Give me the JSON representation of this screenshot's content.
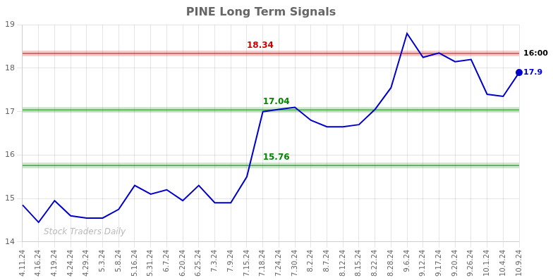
{
  "chart_data": {
    "type": "line",
    "title": "PINE Long Term Signals",
    "categories": [
      "4.11.24",
      "4.16.24",
      "4.19.24",
      "4.24.24",
      "4.29.24",
      "5.3.24",
      "5.8.24",
      "5.16.24",
      "5.31.24",
      "6.7.24",
      "6.20.24",
      "6.25.24",
      "7.3.24",
      "7.9.24",
      "7.15.24",
      "7.18.24",
      "7.24.24",
      "7.30.24",
      "8.2.24",
      "8.7.24",
      "8.12.24",
      "8.15.24",
      "8.22.24",
      "8.28.24",
      "9.6.24",
      "9.12.24",
      "9.17.24",
      "9.20.24",
      "9.26.24",
      "10.1.24",
      "10.4.24",
      "10.9.24"
    ],
    "values": [
      14.85,
      14.45,
      14.95,
      14.6,
      14.55,
      14.55,
      14.75,
      15.3,
      15.1,
      15.2,
      14.95,
      15.3,
      14.9,
      14.9,
      15.5,
      17.0,
      17.05,
      17.1,
      16.8,
      16.65,
      16.65,
      16.7,
      17.05,
      17.55,
      18.8,
      18.25,
      18.35,
      18.15,
      18.2,
      17.4,
      17.35,
      17.9
    ],
    "color": "#0000cc",
    "ylim": [
      14,
      19
    ],
    "yticks": [
      14,
      15,
      16,
      17,
      18,
      19
    ],
    "grid": true,
    "annotations": [
      {
        "type": "hline",
        "y": 18.34,
        "text": "18.34",
        "color": "#cc0000",
        "x": "7.15.24"
      },
      {
        "type": "hline",
        "y": 17.04,
        "text": "17.04",
        "color": "#008800",
        "x": "7.18.24"
      },
      {
        "type": "hline",
        "y": 15.76,
        "text": "15.76",
        "color": "#008800",
        "x": "7.18.24"
      },
      {
        "type": "text",
        "text": "16:00",
        "y": 18.34,
        "color": "#000000"
      },
      {
        "type": "text",
        "text": "17.9",
        "y": 17.9,
        "color": "#0000cc"
      },
      {
        "type": "watermark",
        "text": "Stock Traders Daily",
        "color": "#bbbbbb"
      }
    ]
  }
}
